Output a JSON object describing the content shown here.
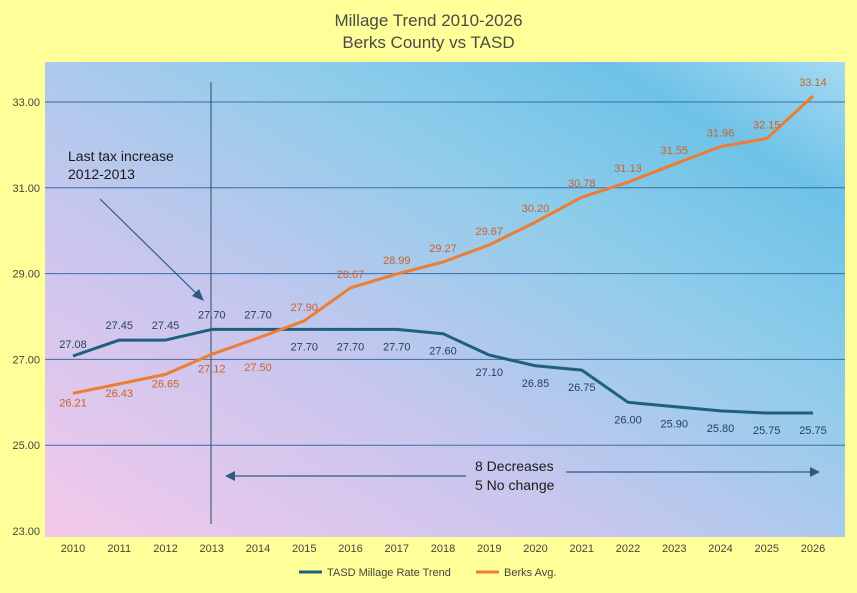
{
  "colors": {
    "tasd": "#1f5f7f",
    "berks": "#ed7d31",
    "grid": "#3a6ea5",
    "background": "#ffff99"
  },
  "chart_data": {
    "type": "line",
    "title": "Millage Trend 2010-2026",
    "subtitle": "Berks County vs TASD",
    "x": [
      "2010",
      "2011",
      "2012",
      "2013",
      "2014",
      "2015",
      "2016",
      "2017",
      "2018",
      "2019",
      "2020",
      "2021",
      "2022",
      "2023",
      "2024",
      "2025",
      "2026"
    ],
    "ylim": [
      23,
      33.5
    ],
    "yticks": [
      "23.00",
      "25.00",
      "27.00",
      "29.00",
      "31.00",
      "33.00"
    ],
    "grid": true,
    "legend_position": "bottom",
    "series": [
      {
        "name": "TASD Millage Rate Trend",
        "values": [
          27.08,
          27.45,
          27.45,
          27.7,
          27.7,
          27.7,
          27.7,
          27.7,
          27.6,
          27.1,
          26.85,
          26.75,
          26.0,
          25.9,
          25.8,
          25.75,
          25.75
        ],
        "labels": [
          "27.08",
          "27.45",
          "27.45",
          "27.70",
          "27.70",
          "27.70",
          "27.70",
          "27.70",
          "27.60",
          "27.10",
          "26.85",
          "26.75",
          "26.00",
          "25.90",
          "25.80",
          "25.75",
          "25.75"
        ]
      },
      {
        "name": "Berks Avg.",
        "values": [
          26.21,
          26.43,
          26.65,
          27.12,
          27.5,
          27.9,
          28.67,
          28.99,
          29.27,
          29.67,
          30.2,
          30.78,
          31.13,
          31.55,
          31.96,
          32.15,
          33.14
        ],
        "labels": [
          "26.21",
          "26.43",
          "26.65",
          "27.12",
          "27.50",
          "27.90",
          "28.67",
          "28.99",
          "29.27",
          "29.67",
          "30.20",
          "30.78",
          "31.13",
          "31.55",
          "31.96",
          "32.15",
          "33.14"
        ]
      }
    ],
    "annotations": {
      "last_increase_line1": "Last tax increase",
      "last_increase_line2": "2012-2013",
      "decreases_line1": "8 Decreases",
      "decreases_line2": "5 No change"
    }
  }
}
